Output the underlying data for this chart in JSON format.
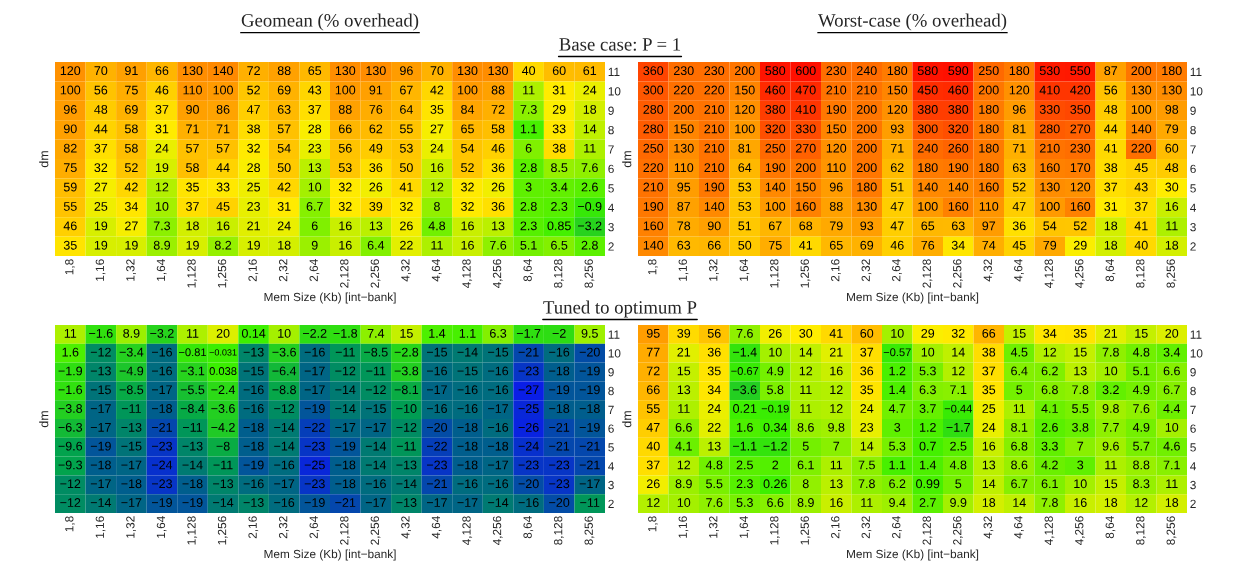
{
  "chart_data": [
    {
      "type": "heatmap",
      "title": "Geomean (% overhead)",
      "subtitle": "Base case: P = 1",
      "xlabel": "Mem Size (Kb) [int−bank]",
      "ylabel": "dm",
      "data_labels": true,
      "categories": [
        "1,8",
        "1,16",
        "1,32",
        "1,64",
        "1,128",
        "1,256",
        "2,16",
        "2,32",
        "2,64",
        "2,128",
        "2,256",
        "4,32",
        "4,64",
        "4,128",
        "4,256",
        "8,64",
        "8,128",
        "8,256"
      ],
      "y_categories": [
        "11",
        "10",
        "9",
        "8",
        "7",
        "6",
        "5",
        "4",
        "3",
        "2"
      ],
      "cells": [
        [
          120,
          70,
          91,
          66,
          130,
          140,
          72,
          88,
          65,
          130,
          130,
          96,
          70,
          130,
          130,
          40,
          60,
          61
        ],
        [
          100,
          56,
          75,
          46,
          110,
          100,
          52,
          69,
          43,
          100,
          91,
          67,
          42,
          100,
          88,
          11,
          31,
          24
        ],
        [
          96,
          48,
          69,
          37,
          90,
          86,
          47,
          63,
          37,
          88,
          76,
          64,
          35,
          84,
          72,
          7.3,
          29,
          18
        ],
        [
          90,
          44,
          58,
          31,
          71,
          71,
          38,
          57,
          28,
          66,
          62,
          55,
          27,
          65,
          58,
          1.1,
          33,
          14
        ],
        [
          82,
          37,
          58,
          24,
          57,
          57,
          32,
          54,
          23,
          56,
          49,
          53,
          24,
          54,
          46,
          6,
          38,
          11
        ],
        [
          75,
          32,
          52,
          19,
          58,
          44,
          28,
          50,
          13,
          53,
          36,
          50,
          16,
          52,
          36,
          2.8,
          8.5,
          7.6
        ],
        [
          59,
          27,
          42,
          12,
          35,
          33,
          25,
          42,
          10,
          32,
          26,
          41,
          12,
          32,
          26,
          3,
          3.4,
          2.6
        ],
        [
          55,
          25,
          34,
          10,
          37,
          45,
          23,
          31,
          6.7,
          32,
          39,
          32,
          8,
          32,
          36,
          2.8,
          2.3,
          -0.9
        ],
        [
          46,
          19,
          27,
          7.3,
          18,
          16,
          21,
          24,
          6,
          16,
          13,
          26,
          4.8,
          16,
          13,
          2.3,
          0.85,
          -3.2
        ],
        [
          35,
          19,
          19,
          8.9,
          19,
          8.2,
          19,
          18,
          9,
          16,
          6.4,
          22,
          11,
          16,
          7.6,
          5.1,
          6.5,
          2.8
        ]
      ]
    },
    {
      "type": "heatmap",
      "title": "Worst-case (% overhead)",
      "xlabel": "Mem Size (Kb) [int−bank]",
      "ylabel": "dm",
      "data_labels": true,
      "categories": [
        "1,8",
        "1,16",
        "1,32",
        "1,64",
        "1,128",
        "1,256",
        "2,16",
        "2,32",
        "2,64",
        "2,128",
        "2,256",
        "4,32",
        "4,64",
        "4,128",
        "4,256",
        "8,64",
        "8,128",
        "8,256"
      ],
      "y_categories": [
        "11",
        "10",
        "9",
        "8",
        "7",
        "6",
        "5",
        "4",
        "3",
        "2"
      ],
      "cells": [
        [
          360,
          230,
          230,
          200,
          580,
          600,
          230,
          240,
          180,
          580,
          590,
          250,
          180,
          530,
          550,
          87,
          200,
          180
        ],
        [
          300,
          220,
          220,
          150,
          460,
          470,
          210,
          210,
          150,
          450,
          460,
          200,
          120,
          410,
          420,
          56,
          130,
          130
        ],
        [
          280,
          200,
          210,
          120,
          380,
          410,
          190,
          200,
          120,
          380,
          380,
          180,
          96,
          330,
          350,
          48,
          100,
          98
        ],
        [
          280,
          150,
          210,
          100,
          320,
          330,
          150,
          200,
          93,
          300,
          320,
          180,
          81,
          280,
          270,
          44,
          140,
          79
        ],
        [
          250,
          130,
          210,
          81,
          250,
          270,
          120,
          200,
          71,
          240,
          260,
          180,
          71,
          210,
          230,
          41,
          220,
          60
        ],
        [
          220,
          110,
          210,
          64,
          190,
          200,
          110,
          200,
          62,
          180,
          190,
          180,
          63,
          160,
          170,
          38,
          45,
          48
        ],
        [
          210,
          95,
          190,
          53,
          140,
          150,
          96,
          180,
          51,
          140,
          140,
          160,
          52,
          130,
          120,
          37,
          43,
          30
        ],
        [
          190,
          87,
          140,
          53,
          100,
          160,
          88,
          130,
          47,
          100,
          160,
          110,
          47,
          100,
          160,
          31,
          37,
          16
        ],
        [
          160,
          78,
          90,
          51,
          67,
          68,
          79,
          93,
          47,
          65,
          63,
          97,
          36,
          54,
          52,
          18,
          41,
          11
        ],
        [
          140,
          63,
          66,
          50,
          75,
          41,
          65,
          69,
          46,
          76,
          34,
          74,
          45,
          79,
          29,
          18,
          40,
          18
        ]
      ]
    },
    {
      "type": "heatmap",
      "subtitle": "Tuned to optimum P",
      "xlabel": "Mem Size (Kb) [int−bank]",
      "ylabel": "dm",
      "data_labels": true,
      "categories": [
        "1,8",
        "1,16",
        "1,32",
        "1,64",
        "1,128",
        "1,256",
        "2,16",
        "2,32",
        "2,64",
        "2,128",
        "2,256",
        "4,32",
        "4,64",
        "4,128",
        "4,256",
        "8,64",
        "8,128",
        "8,256"
      ],
      "y_categories": [
        "11",
        "10",
        "9",
        "8",
        "7",
        "6",
        "5",
        "4",
        "3",
        "2"
      ],
      "cells": [
        [
          11,
          -1.6,
          8.9,
          -3.2,
          11,
          20,
          0.14,
          10,
          -2.2,
          -1.8,
          7.4,
          15,
          1.4,
          1.1,
          6.3,
          -1.7,
          -2,
          9.5
        ],
        [
          1.6,
          -12,
          -3.4,
          -16,
          -0.81,
          -0.031,
          -13,
          -3.6,
          -16,
          -11,
          -8.5,
          -2.8,
          -15,
          -14,
          -15,
          -21,
          -16,
          -20
        ],
        [
          -1.9,
          -13,
          -4.9,
          -16,
          -3.1,
          0.038,
          -15,
          -6.4,
          -17,
          -12,
          -11,
          -3.8,
          -16,
          -15,
          -16,
          -23,
          -18,
          -19
        ],
        [
          -1.6,
          -15,
          -8.5,
          -17,
          -5.5,
          -2.4,
          -16,
          -8.8,
          -17,
          -14,
          -12,
          -8.1,
          -17,
          -16,
          -16,
          -27,
          -19,
          -19
        ],
        [
          -3.8,
          -17,
          -11,
          -18,
          -8.4,
          -3.6,
          -16,
          -12,
          -19,
          -14,
          -15,
          -10,
          -16,
          -16,
          -17,
          -25,
          -18,
          -18
        ],
        [
          -6.3,
          -17,
          -13,
          -21,
          -11,
          -4.2,
          -18,
          -14,
          -22,
          -17,
          -17,
          -12,
          -20,
          -18,
          -16,
          -26,
          -21,
          -19
        ],
        [
          -9.6,
          -19,
          -15,
          -23,
          -13,
          -8,
          -18,
          -14,
          -23,
          -19,
          -14,
          -11,
          -22,
          -18,
          -18,
          -24,
          -21,
          -21
        ],
        [
          -9.3,
          -18,
          -17,
          -24,
          -14,
          -11,
          -19,
          -16,
          -25,
          -18,
          -14,
          -13,
          -23,
          -18,
          -17,
          -23,
          -23,
          -21
        ],
        [
          -12,
          -17,
          -18,
          -23,
          -18,
          -13,
          -16,
          -17,
          -23,
          -18,
          -16,
          -14,
          -21,
          -16,
          -16,
          -20,
          -23,
          -17
        ],
        [
          -12,
          -14,
          -17,
          -19,
          -19,
          -14,
          -13,
          -16,
          -19,
          -21,
          -17,
          -13,
          -17,
          -17,
          -14,
          -16,
          -20,
          -11
        ]
      ]
    },
    {
      "type": "heatmap",
      "xlabel": "Mem Size (Kb) [int−bank]",
      "ylabel": "dm",
      "data_labels": true,
      "categories": [
        "1,8",
        "1,16",
        "1,32",
        "1,64",
        "1,128",
        "1,256",
        "2,16",
        "2,32",
        "2,64",
        "2,128",
        "2,256",
        "4,32",
        "4,64",
        "4,128",
        "4,256",
        "8,64",
        "8,128",
        "8,256"
      ],
      "y_categories": [
        "11",
        "10",
        "9",
        "8",
        "7",
        "6",
        "5",
        "4",
        "3",
        "2"
      ],
      "cells": [
        [
          95,
          39,
          56,
          7.6,
          26,
          30,
          41,
          60,
          10,
          29,
          32,
          66,
          15,
          34,
          35,
          21,
          15,
          20
        ],
        [
          77,
          21,
          36,
          -1.4,
          10,
          14,
          21,
          37,
          -0.57,
          10,
          14,
          38,
          4.5,
          12,
          15,
          7.8,
          4.8,
          3.4
        ],
        [
          72,
          15,
          35,
          -0.67,
          4.9,
          12,
          16,
          36,
          1.2,
          5.3,
          12,
          37,
          6.4,
          6.2,
          13,
          10,
          5.1,
          6.6
        ],
        [
          66,
          13,
          34,
          -3.6,
          5.8,
          11,
          12,
          35,
          1.4,
          6.3,
          7.1,
          35,
          5,
          6.8,
          7.8,
          3.2,
          4.9,
          6.7
        ],
        [
          55,
          11,
          24,
          0.21,
          -0.19,
          11,
          12,
          24,
          4.7,
          3.7,
          -0.44,
          25,
          11,
          4.1,
          5.5,
          9.8,
          7.6,
          4.4
        ],
        [
          47,
          6.6,
          22,
          1.6,
          0.34,
          8.6,
          9.8,
          23,
          3,
          1.2,
          -1.7,
          24,
          8.1,
          2.6,
          3.8,
          7.7,
          4.9,
          10
        ],
        [
          40,
          4.1,
          13,
          -1.1,
          -1.2,
          5,
          7,
          14,
          5.3,
          0.7,
          2.5,
          16,
          6.8,
          3.3,
          7,
          9.6,
          5.7,
          4.6
        ],
        [
          37,
          12,
          4.8,
          2.5,
          2,
          6.1,
          11,
          7.5,
          1.1,
          1.4,
          4.8,
          13,
          8.6,
          4.2,
          3,
          11,
          8.8,
          7.1
        ],
        [
          26,
          8.9,
          5.5,
          2.3,
          0.26,
          8,
          13,
          7.8,
          6.2,
          0.99,
          5,
          14,
          6.7,
          6.1,
          10,
          15,
          8.3,
          11
        ],
        [
          12,
          10,
          7.6,
          5.3,
          6.6,
          8.9,
          16,
          11,
          9.4,
          2.7,
          9.9,
          18,
          14,
          7.8,
          16,
          18,
          12,
          18
        ]
      ]
    }
  ]
}
